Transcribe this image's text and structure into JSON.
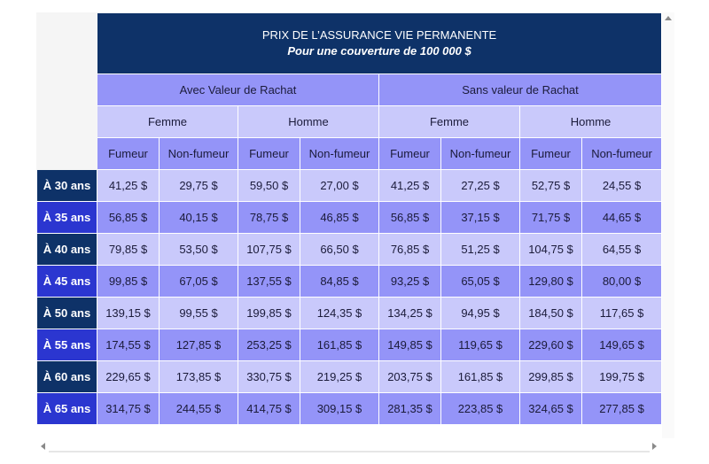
{
  "title": "PRIX DE L’ASSURANCE VIE PERMANENTE",
  "subtitle": "Pour une couverture de 100 000 $",
  "groups": [
    "Avec Valeur de Rachat",
    "Sans valeur de Rachat"
  ],
  "sexes": [
    "Femme",
    "Homme",
    "Femme",
    "Homme"
  ],
  "smoker_labels": [
    "Fumeur",
    "Non-fumeur",
    "Fumeur",
    "Non-fumeur",
    "Fumeur",
    "Non-fumeur",
    "Fumeur",
    "Non-fumeur"
  ],
  "rows": [
    {
      "age": "À 30 ans",
      "values": [
        "41,25 $",
        "29,75 $",
        "59,50 $",
        "27,00 $",
        "41,25 $",
        "27,25 $",
        "52,75 $",
        "24,55 $"
      ]
    },
    {
      "age": "À 35 ans",
      "values": [
        "56,85 $",
        "40,15 $",
        "78,75 $",
        "46,85 $",
        "56,85 $",
        "37,15 $",
        "71,75 $",
        "44,65 $"
      ]
    },
    {
      "age": "À 40 ans",
      "values": [
        "79,85 $",
        "53,50 $",
        "107,75 $",
        "66,50 $",
        "76,85 $",
        "51,25 $",
        "104,75 $",
        "64,55 $"
      ]
    },
    {
      "age": "À 45 ans",
      "values": [
        "99,85 $",
        "67,05 $",
        "137,55 $",
        "84,85 $",
        "93,25 $",
        "65,05 $",
        "129,80 $",
        "80,00 $"
      ]
    },
    {
      "age": "À 50 ans",
      "values": [
        "139,15 $",
        "99,55 $",
        "199,85 $",
        "124,35 $",
        "134,25 $",
        "94,95 $",
        "184,50 $",
        "117,65 $"
      ]
    },
    {
      "age": "À 55 ans",
      "values": [
        "174,55 $",
        "127,85 $",
        "253,25 $",
        "161,85 $",
        "149,85 $",
        "119,65 $",
        "229,60 $",
        "149,65 $"
      ]
    },
    {
      "age": "À 60 ans",
      "values": [
        "229,65 $",
        "173,85 $",
        "330,75 $",
        "219,25 $",
        "203,75 $",
        "161,85 $",
        "299,85 $",
        "199,75 $"
      ]
    },
    {
      "age": "À 65 ans",
      "values": [
        "314,75 $",
        "244,55 $",
        "414,75 $",
        "309,15 $",
        "281,35 $",
        "223,85 $",
        "324,65 $",
        "277,85 $"
      ]
    }
  ],
  "colors": {
    "navy": "#0e3268",
    "royal_blue": "#2b36d0",
    "periwinkle": "#9494f8",
    "lavender": "#c9c9fb"
  },
  "icons": {
    "scroll_up": "triangle-up",
    "scroll_left": "triangle-left",
    "scroll_right": "triangle-right"
  }
}
